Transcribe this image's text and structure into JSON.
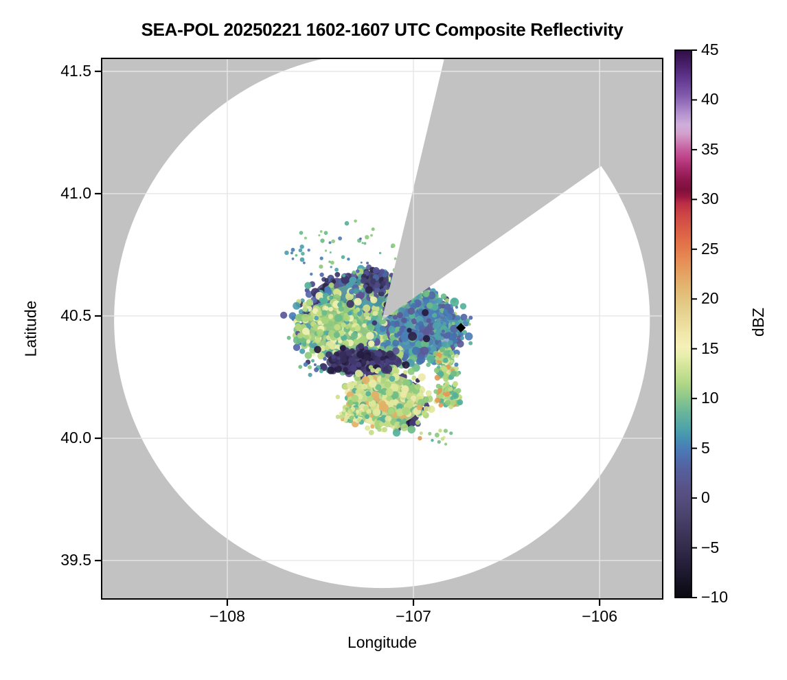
{
  "chart_data": {
    "type": "heatmap",
    "subtype": "radar-composite-reflectivity-ppi",
    "title": "SEA-POL 20250221 1602-1607 UTC Composite Reflectivity",
    "xlabel": "Longitude",
    "ylabel": "Latitude",
    "xlim": [
      -108.675,
      -105.661
    ],
    "ylim": [
      39.343,
      41.553
    ],
    "grid": true,
    "x_ticks": [
      {
        "value": -108,
        "label": "−108"
      },
      {
        "value": -107,
        "label": "−107"
      },
      {
        "value": -106,
        "label": "−106"
      }
    ],
    "y_ticks": [
      {
        "value": 41.5,
        "label": "41.5"
      },
      {
        "value": 41.0,
        "label": "41.0"
      },
      {
        "value": 40.5,
        "label": "40.5"
      },
      {
        "value": 40.0,
        "label": "40.0"
      },
      {
        "value": 39.5,
        "label": "39.5"
      }
    ],
    "colors": {
      "no_data_background": "#c2c2c2",
      "coverage_fill": "#ffffff",
      "grid_color": "#e6e6e6",
      "spine_color": "#000000",
      "marker_color": "#000000"
    },
    "radar": {
      "lon": -107.169,
      "lat": 40.483,
      "coverage_radius_deg_lon": 1.439,
      "blocked_sector_azimuth_deg": [
        13.4,
        54.9
      ]
    },
    "site_marker": {
      "shape": "diamond",
      "lon": -106.745,
      "lat": 40.452
    },
    "colorbar": {
      "label": "dBZ",
      "min": -10,
      "max": 45,
      "ticks": [
        {
          "value": 45,
          "label": "45"
        },
        {
          "value": 40,
          "label": "40"
        },
        {
          "value": 35,
          "label": "35"
        },
        {
          "value": 30,
          "label": "30"
        },
        {
          "value": 25,
          "label": "25"
        },
        {
          "value": 20,
          "label": "20"
        },
        {
          "value": 15,
          "label": "15"
        },
        {
          "value": 10,
          "label": "10"
        },
        {
          "value": 5,
          "label": "5"
        },
        {
          "value": 0,
          "label": "0"
        },
        {
          "value": -5,
          "label": "−5"
        },
        {
          "value": -10,
          "label": "−10"
        }
      ],
      "stops": [
        [
          45,
          "#2f0f45"
        ],
        [
          43.5,
          "#49206b"
        ],
        [
          42,
          "#643a92"
        ],
        [
          40.5,
          "#8059ab"
        ],
        [
          39.5,
          "#9b77bf"
        ],
        [
          38.5,
          "#b795cf"
        ],
        [
          37.5,
          "#cfaedb"
        ],
        [
          36.6,
          "#d2a0cd"
        ],
        [
          35.8,
          "#cc7fb4"
        ],
        [
          35,
          "#c65d9e"
        ],
        [
          34,
          "#bb3d83"
        ],
        [
          33,
          "#a42767"
        ],
        [
          32,
          "#8f164d"
        ],
        [
          31,
          "#7f0f3b"
        ],
        [
          30.3,
          "#97173f"
        ],
        [
          29.6,
          "#bb2d45"
        ],
        [
          28.5,
          "#cd4546"
        ],
        [
          27,
          "#d95c46"
        ],
        [
          25.5,
          "#e37349"
        ],
        [
          24,
          "#e78b55"
        ],
        [
          22.5,
          "#e5a263"
        ],
        [
          21,
          "#e3b873"
        ],
        [
          19.5,
          "#e3ca86"
        ],
        [
          18,
          "#e9d897"
        ],
        [
          16.5,
          "#f0e7a9"
        ],
        [
          15.2,
          "#f5f0b8"
        ],
        [
          14.2,
          "#e6edaa"
        ],
        [
          13,
          "#cfe296"
        ],
        [
          11.5,
          "#b0d787"
        ],
        [
          10,
          "#8ac68b"
        ],
        [
          8.5,
          "#67b49b"
        ],
        [
          7,
          "#4fa3a8"
        ],
        [
          6,
          "#4591b1"
        ],
        [
          5,
          "#4a7cb8"
        ],
        [
          4,
          "#4f6dac"
        ],
        [
          3,
          "#54619f"
        ],
        [
          2,
          "#575a94"
        ],
        [
          1,
          "#575287"
        ],
        [
          0,
          "#554d7d"
        ],
        [
          -1.5,
          "#4c456f"
        ],
        [
          -3,
          "#41395f"
        ],
        [
          -4.5,
          "#362f4f"
        ],
        [
          -6,
          "#2b2441"
        ],
        [
          -7.5,
          "#1e1930"
        ],
        [
          -9,
          "#110f1c"
        ],
        [
          -10,
          "#0a0911"
        ]
      ]
    },
    "palettes": {
      "core": [
        "#4f9fae",
        "#4f9fae",
        "#55b19a",
        "#6cbc88",
        "#6cbc88",
        "#8cca7d",
        "#b2d67c",
        "#d2e18c",
        "#e9eda6",
        "#4a7eb6",
        "#4a7eb6",
        "#5366a8",
        "#5b5997",
        "#5f5092",
        "#3d3468",
        "#4f9fae",
        "#78c183",
        "#46919f"
      ],
      "n_purple": [
        "#454178",
        "#4d4a85",
        "#3b3766",
        "#5a5896",
        "#34305a",
        "#4a69a4",
        "#2c2847",
        "#515096"
      ],
      "west_green": [
        "#8cca7d",
        "#a7d47b",
        "#c3dd85",
        "#dfe89d",
        "#6cbc88",
        "#55b19a",
        "#eff0b3",
        "#4f9fae",
        "#b2d67c"
      ],
      "east_blue": [
        "#4a7eb6",
        "#4473ae",
        "#5366a8",
        "#4f9fae",
        "#55b19a",
        "#6cbc88",
        "#5b5997",
        "#4a7eb6"
      ],
      "purple_dark": [
        "#3d3468",
        "#352c59",
        "#2c234a",
        "#4a4080",
        "#241c3e",
        "#433a72"
      ],
      "south_khaki": [
        "#c3dd85",
        "#d2e18c",
        "#dfe89d",
        "#add67e",
        "#8cca7d",
        "#ece9a8",
        "#6cbc88",
        "#55b19a",
        "#c3dd85",
        "#dfe89d",
        "#e2b066"
      ],
      "se_green": [
        "#add67e",
        "#8cca7d",
        "#c3dd85",
        "#6cbc88",
        "#55b19a",
        "#dfe89d",
        "#e29a55"
      ],
      "speck_teal": [
        "#55b19a",
        "#4f9fae",
        "#6cbc88",
        "#4a7eb6",
        "#8cca7d",
        "#5366a8"
      ],
      "dark_spots": [
        "#2c234a",
        "#3d3468",
        "#241c3e"
      ]
    },
    "echo_blobs": [
      {
        "name": "north-purple-band",
        "lon": -107.302,
        "lat": 40.598,
        "rx": 0.2214,
        "ry": 0.0618,
        "dots": 170,
        "r0": 3,
        "r1": 6,
        "base": "#4b4880",
        "base_alpha": 0.9,
        "palette": "n_purple",
        "seed": 11
      },
      {
        "name": "main-core",
        "lon": -107.21,
        "lat": 40.472,
        "rx": 0.369,
        "ry": 0.1685,
        "dots": 750,
        "r0": 3,
        "r1": 6.5,
        "base": "#5ea4a0",
        "base_alpha": 0.85,
        "palette": "core",
        "seed": 22
      },
      {
        "name": "west-green-lobe",
        "lon": -107.413,
        "lat": 40.444,
        "rx": 0.1845,
        "ry": 0.1123,
        "dots": 250,
        "r0": 3,
        "r1": 6,
        "base": "#9ccb80",
        "base_alpha": 0.85,
        "palette": "west_green",
        "seed": 33
      },
      {
        "name": "east-blue-lobe",
        "lon": -106.926,
        "lat": 40.449,
        "rx": 0.1697,
        "ry": 0.1292,
        "dots": 220,
        "r0": 3,
        "r1": 6,
        "base": "#5585b5",
        "base_alpha": 0.65,
        "palette": "east_blue",
        "seed": 44
      },
      {
        "name": "purple-band-south-of-core",
        "lon": -107.265,
        "lat": 40.312,
        "rx": 0.203,
        "ry": 0.0506,
        "dots": 130,
        "r0": 3,
        "r1": 6,
        "base": "#3f3870",
        "base_alpha": 0.85,
        "palette": "purple_dark",
        "seed": 55
      },
      {
        "name": "purple-south-blob",
        "lon": -107.051,
        "lat": 40.135,
        "rx": 0.0959,
        "ry": 0.0927,
        "dots": 120,
        "r0": 3,
        "r1": 6,
        "base": "#342b58",
        "base_alpha": 0.9,
        "palette": "purple_dark",
        "seed": 66
      },
      {
        "name": "south-yellow-lobe",
        "lon": -107.155,
        "lat": 40.157,
        "rx": 0.203,
        "ry": 0.1067,
        "dots": 300,
        "r0": 3,
        "r1": 6,
        "base": "#b9d687",
        "base_alpha": 0.9,
        "palette": "south_khaki",
        "seed": 77
      },
      {
        "name": "se-blob-1",
        "lon": -106.83,
        "lat": 40.337,
        "rx": 0.0517,
        "ry": 0.0309,
        "dots": 35,
        "r0": 2.5,
        "r1": 4.5,
        "base": "#a6d07f",
        "base_alpha": 0.9,
        "palette": "se_green",
        "seed": 88
      },
      {
        "name": "se-blob-2",
        "lon": -106.822,
        "lat": 40.27,
        "rx": 0.0517,
        "ry": 0.0281,
        "dots": 35,
        "r0": 2.5,
        "r1": 4.5,
        "base": "#a6d07f",
        "base_alpha": 0.9,
        "palette": "se_green",
        "seed": 99
      },
      {
        "name": "se-blob-3",
        "lon": -106.815,
        "lat": 40.174,
        "rx": 0.0627,
        "ry": 0.0421,
        "dots": 55,
        "r0": 2.5,
        "r1": 4.5,
        "base": "#a6d07f",
        "base_alpha": 0.9,
        "palette": "se_green",
        "seed": 110
      },
      {
        "name": "nw-speck-field",
        "lon": -107.358,
        "lat": 40.758,
        "rx": 0.2878,
        "ry": 0.1011,
        "dots": 60,
        "r0": 1.5,
        "r1": 3.5,
        "base": null,
        "base_alpha": 0,
        "palette": "speck_teal",
        "seed": 121
      },
      {
        "name": "east-specks",
        "lon": -106.756,
        "lat": 40.424,
        "rx": 0.0812,
        "ry": 0.1123,
        "dots": 16,
        "r0": 2,
        "r1": 3.5,
        "base": null,
        "base_alpha": 0,
        "palette": "speck_teal",
        "seed": 132
      },
      {
        "name": "south-specks",
        "lon": -106.903,
        "lat": 40.011,
        "rx": 0.0886,
        "ry": 0.0393,
        "dots": 12,
        "r0": 2,
        "r1": 3.5,
        "base": null,
        "base_alpha": 0,
        "palette": "se_green",
        "seed": 143
      },
      {
        "name": "sw-streak",
        "lon": -107.31,
        "lat": 40.098,
        "rx": 0.0812,
        "ry": 0.0281,
        "dots": 60,
        "r0": 2,
        "r1": 4,
        "base": "#b9d687",
        "base_alpha": 0.8,
        "palette": "south_khaki",
        "seed": 154
      },
      {
        "name": "west-specks",
        "lon": -107.542,
        "lat": 40.289,
        "rx": 0.07,
        "ry": 0.0506,
        "dots": 10,
        "r0": 2,
        "r1": 4,
        "base": null,
        "base_alpha": 0,
        "palette": "speck_teal",
        "seed": 165
      },
      {
        "name": "north-dark-bridge",
        "lon": -107.199,
        "lat": 40.646,
        "rx": 0.0664,
        "ry": 0.0449,
        "dots": 55,
        "r0": 3,
        "r1": 5,
        "base": "#3a3564",
        "base_alpha": 0.85,
        "palette": "n_purple",
        "seed": 176
      },
      {
        "name": "core-dark-spots",
        "lon": -107.21,
        "lat": 40.472,
        "rx": 0.32,
        "ry": 0.15,
        "dots": 14,
        "r0": 3.5,
        "r1": 6.5,
        "base": null,
        "base_alpha": 0,
        "palette": "dark_spots",
        "seed": 187
      }
    ]
  }
}
